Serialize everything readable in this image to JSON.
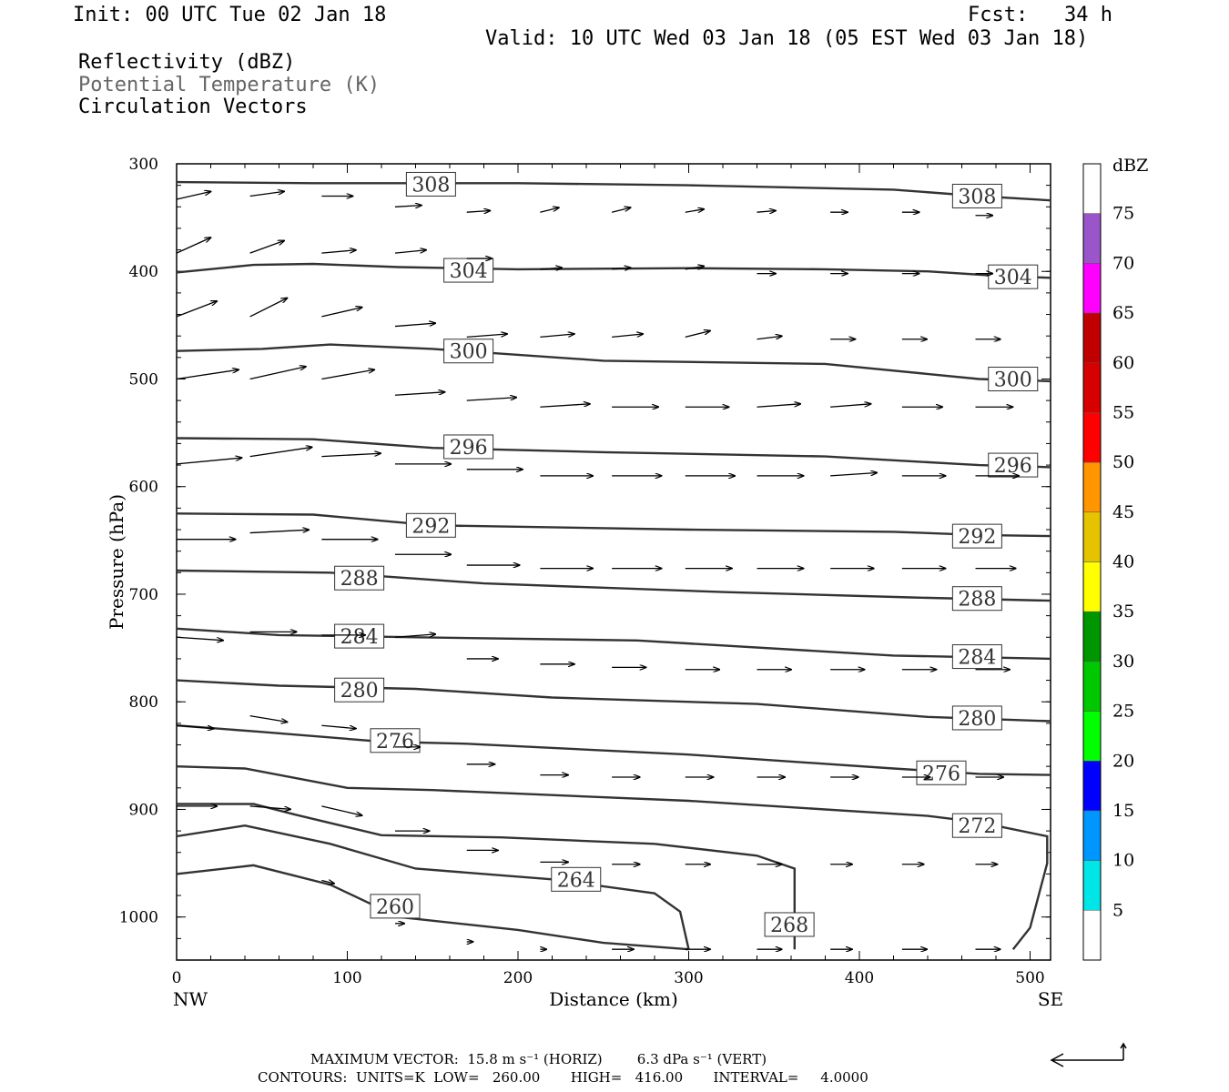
{
  "header": {
    "init": "Init: 00 UTC Tue 02 Jan 18",
    "fcst": "Fcst:   34 h",
    "valid": "Valid: 10 UTC Wed 03 Jan 18 (05 EST Wed 03 Jan 18)",
    "field1": "Reflectivity (dBZ)",
    "field2": "Potential Temperature (K)",
    "field3": "Circulation Vectors"
  },
  "footer": {
    "line1": "MAXIMUM VECTOR:  15.8 m s⁻¹ (HORIZ)        6.3 dPa s⁻¹ (VERT)",
    "line2": "CONTOURS:  UNITS=K  LOW=   260.00       HIGH=   416.00       INTERVAL=     4.0000"
  },
  "colors": {
    "contour": "#333333",
    "vector": "#000000",
    "frame": "#000000"
  },
  "colorbar": {
    "title": "dBZ",
    "ticks": [
      "5",
      "10",
      "15",
      "20",
      "25",
      "30",
      "35",
      "40",
      "45",
      "50",
      "55",
      "60",
      "65",
      "70",
      "75"
    ],
    "colors": [
      "#ffffff",
      "#00e5e5",
      "#0096ff",
      "#0000ff",
      "#00ff00",
      "#00c800",
      "#009600",
      "#ffff00",
      "#e6c300",
      "#ff9600",
      "#ff0000",
      "#d70000",
      "#c00000",
      "#ff00ff",
      "#9955c9",
      "#ffffff"
    ]
  },
  "chart_data": {
    "type": "cross-section",
    "xlabel": "Distance (km)",
    "ylabel": "Pressure (hPa)",
    "xlim": [
      0,
      512
    ],
    "ylim": [
      300,
      1040
    ],
    "xticks": [
      0,
      100,
      200,
      300,
      400,
      500
    ],
    "yticks": [
      300,
      400,
      500,
      600,
      700,
      800,
      900,
      1000
    ],
    "x_end_labels": [
      "NW",
      "SE"
    ],
    "contours": [
      {
        "value": 308,
        "label": "308",
        "points": [
          [
            0,
            317
          ],
          [
            80,
            318
          ],
          [
            200,
            318
          ],
          [
            300,
            320
          ],
          [
            420,
            324
          ],
          [
            470,
            330
          ],
          [
            512,
            334
          ]
        ],
        "labels_at": [
          [
            149,
            319
          ],
          [
            469,
            330
          ]
        ]
      },
      {
        "value": 304,
        "label": "304",
        "points": [
          [
            0,
            401
          ],
          [
            45,
            394
          ],
          [
            80,
            393
          ],
          [
            130,
            396
          ],
          [
            200,
            398
          ],
          [
            300,
            397
          ],
          [
            380,
            398
          ],
          [
            440,
            400
          ],
          [
            480,
            404
          ],
          [
            512,
            406
          ]
        ],
        "labels_at": [
          [
            171,
            399
          ],
          [
            490,
            405
          ]
        ]
      },
      {
        "value": 300,
        "label": "300",
        "points": [
          [
            0,
            474
          ],
          [
            50,
            472
          ],
          [
            90,
            468
          ],
          [
            150,
            472
          ],
          [
            250,
            483
          ],
          [
            380,
            486
          ],
          [
            470,
            500
          ],
          [
            512,
            502
          ]
        ],
        "labels_at": [
          [
            171,
            474
          ],
          [
            490,
            500
          ]
        ]
      },
      {
        "value": 296,
        "label": "296",
        "points": [
          [
            0,
            555
          ],
          [
            80,
            556
          ],
          [
            150,
            564
          ],
          [
            250,
            568
          ],
          [
            380,
            572
          ],
          [
            470,
            580
          ],
          [
            512,
            582
          ]
        ],
        "labels_at": [
          [
            171,
            563
          ],
          [
            490,
            580
          ]
        ]
      },
      {
        "value": 292,
        "label": "292",
        "points": [
          [
            0,
            625
          ],
          [
            80,
            626
          ],
          [
            150,
            636
          ],
          [
            300,
            640
          ],
          [
            420,
            642
          ],
          [
            470,
            645
          ],
          [
            512,
            646
          ]
        ],
        "labels_at": [
          [
            149,
            636
          ],
          [
            469,
            646
          ]
        ]
      },
      {
        "value": 288,
        "label": "288",
        "points": [
          [
            0,
            678
          ],
          [
            90,
            680
          ],
          [
            180,
            690
          ],
          [
            320,
            698
          ],
          [
            430,
            703
          ],
          [
            512,
            706
          ]
        ],
        "labels_at": [
          [
            107,
            685
          ],
          [
            469,
            704
          ]
        ]
      },
      {
        "value": 284,
        "label": "284",
        "points": [
          [
            0,
            732
          ],
          [
            60,
            738
          ],
          [
            140,
            740
          ],
          [
            270,
            743
          ],
          [
            420,
            757
          ],
          [
            512,
            760
          ]
        ],
        "labels_at": [
          [
            107,
            739
          ],
          [
            469,
            758
          ]
        ]
      },
      {
        "value": 280,
        "label": "280",
        "points": [
          [
            0,
            780
          ],
          [
            60,
            785
          ],
          [
            140,
            788
          ],
          [
            220,
            796
          ],
          [
            340,
            802
          ],
          [
            440,
            814
          ],
          [
            512,
            818
          ]
        ],
        "labels_at": [
          [
            107,
            789
          ],
          [
            469,
            815
          ]
        ]
      },
      {
        "value": 276,
        "label": "276",
        "points": [
          [
            0,
            822
          ],
          [
            50,
            828
          ],
          [
            120,
            837
          ],
          [
            170,
            839
          ],
          [
            300,
            849
          ],
          [
            420,
            862
          ],
          [
            470,
            867
          ],
          [
            512,
            868
          ]
        ],
        "labels_at": [
          [
            128,
            836
          ],
          [
            448,
            866
          ]
        ]
      },
      {
        "value": 272,
        "label": "272",
        "points": [
          [
            0,
            860
          ],
          [
            40,
            862
          ],
          [
            100,
            880
          ],
          [
            150,
            882
          ],
          [
            300,
            892
          ],
          [
            440,
            906
          ],
          [
            470,
            912
          ],
          [
            510,
            925
          ],
          [
            510,
            950
          ],
          [
            500,
            1010
          ],
          [
            490,
            1030
          ]
        ],
        "labels_at": [
          [
            469,
            915
          ]
        ]
      },
      {
        "value": 268,
        "label": "268",
        "points": [
          [
            0,
            895
          ],
          [
            45,
            895
          ],
          [
            70,
            905
          ],
          [
            120,
            924
          ],
          [
            190,
            926
          ],
          [
            280,
            932
          ],
          [
            340,
            943
          ],
          [
            362,
            955
          ],
          [
            362,
            1030
          ]
        ],
        "labels_at": [
          [
            359,
            1007
          ]
        ]
      },
      {
        "value": 264,
        "label": "264",
        "points": [
          [
            0,
            925
          ],
          [
            40,
            915
          ],
          [
            90,
            932
          ],
          [
            140,
            955
          ],
          [
            220,
            965
          ],
          [
            280,
            978
          ],
          [
            295,
            995
          ],
          [
            300,
            1030
          ]
        ],
        "labels_at": [
          [
            234,
            965
          ]
        ]
      },
      {
        "value": 260,
        "label": "260",
        "points": [
          [
            0,
            960
          ],
          [
            45,
            952
          ],
          [
            90,
            970
          ],
          [
            130,
            1000
          ],
          [
            200,
            1012
          ],
          [
            250,
            1024
          ],
          [
            300,
            1030
          ]
        ],
        "labels_at": [
          [
            128,
            990
          ]
        ]
      }
    ],
    "vectors": {
      "note": "Circulation vectors as (x km, pressure hPa, u-component, w-component) in arbitrary plot units",
      "arrows": [
        [
          0,
          333,
          22,
          -5
        ],
        [
          43,
          330,
          22,
          -3
        ],
        [
          85,
          330,
          20,
          0
        ],
        [
          128,
          340,
          17,
          -1
        ],
        [
          170,
          345,
          15,
          -1
        ],
        [
          213,
          345,
          12,
          -3
        ],
        [
          255,
          345,
          12,
          -3
        ],
        [
          298,
          345,
          12,
          -2
        ],
        [
          340,
          345,
          12,
          -1
        ],
        [
          383,
          345,
          11,
          0
        ],
        [
          425,
          345,
          11,
          0
        ],
        [
          468,
          348,
          11,
          0
        ],
        [
          0,
          383,
          22,
          -10
        ],
        [
          43,
          383,
          22,
          -8
        ],
        [
          85,
          383,
          22,
          -2
        ],
        [
          128,
          383,
          20,
          -2
        ],
        [
          170,
          388,
          16,
          0
        ],
        [
          213,
          398,
          14,
          -1
        ],
        [
          255,
          398,
          12,
          -1
        ],
        [
          298,
          398,
          12,
          -2
        ],
        [
          340,
          402,
          12,
          0
        ],
        [
          383,
          402,
          11,
          0
        ],
        [
          425,
          402,
          11,
          0
        ],
        [
          468,
          402,
          11,
          0
        ],
        [
          0,
          442,
          26,
          -10
        ],
        [
          43,
          442,
          24,
          -12
        ],
        [
          85,
          442,
          26,
          -6
        ],
        [
          128,
          451,
          26,
          -2
        ],
        [
          170,
          461,
          26,
          -2
        ],
        [
          213,
          461,
          22,
          -2
        ],
        [
          255,
          461,
          20,
          -2
        ],
        [
          298,
          461,
          16,
          -4
        ],
        [
          340,
          463,
          16,
          -2
        ],
        [
          383,
          463,
          16,
          0
        ],
        [
          425,
          463,
          16,
          0
        ],
        [
          468,
          463,
          16,
          0
        ],
        [
          0,
          500,
          40,
          -6
        ],
        [
          43,
          500,
          36,
          -8
        ],
        [
          85,
          500,
          34,
          -6
        ],
        [
          128,
          515,
          32,
          -2
        ],
        [
          170,
          520,
          32,
          -2
        ],
        [
          213,
          526,
          32,
          -2
        ],
        [
          255,
          526,
          30,
          0
        ],
        [
          298,
          526,
          28,
          0
        ],
        [
          340,
          526,
          28,
          -2
        ],
        [
          383,
          526,
          26,
          -2
        ],
        [
          425,
          526,
          26,
          0
        ],
        [
          468,
          526,
          24,
          0
        ],
        [
          0,
          579,
          42,
          -4
        ],
        [
          43,
          572,
          40,
          -6
        ],
        [
          85,
          572,
          38,
          -2
        ],
        [
          128,
          579,
          36,
          0
        ],
        [
          170,
          584,
          36,
          0
        ],
        [
          213,
          590,
          34,
          0
        ],
        [
          255,
          590,
          32,
          0
        ],
        [
          298,
          590,
          32,
          0
        ],
        [
          340,
          590,
          30,
          0
        ],
        [
          383,
          590,
          30,
          -2
        ],
        [
          425,
          590,
          28,
          0
        ],
        [
          468,
          590,
          28,
          0
        ],
        [
          0,
          649,
          38,
          0
        ],
        [
          43,
          643,
          38,
          -2
        ],
        [
          85,
          649,
          36,
          0
        ],
        [
          128,
          663,
          36,
          0
        ],
        [
          170,
          673,
          34,
          0
        ],
        [
          213,
          676,
          34,
          0
        ],
        [
          255,
          676,
          32,
          0
        ],
        [
          298,
          676,
          30,
          0
        ],
        [
          340,
          676,
          30,
          0
        ],
        [
          383,
          676,
          28,
          0
        ],
        [
          425,
          676,
          28,
          0
        ],
        [
          468,
          676,
          26,
          0
        ],
        [
          0,
          740,
          30,
          2
        ],
        [
          43,
          735,
          30,
          0
        ],
        [
          85,
          738,
          28,
          0
        ],
        [
          128,
          740,
          26,
          -2
        ],
        [
          170,
          760,
          20,
          0
        ],
        [
          213,
          765,
          22,
          0
        ],
        [
          255,
          768,
          22,
          0
        ],
        [
          298,
          770,
          22,
          0
        ],
        [
          340,
          770,
          22,
          0
        ],
        [
          383,
          770,
          22,
          0
        ],
        [
          425,
          770,
          22,
          0
        ],
        [
          468,
          770,
          22,
          0
        ],
        [
          0,
          822,
          24,
          2
        ],
        [
          43,
          813,
          24,
          4
        ],
        [
          85,
          822,
          22,
          2
        ],
        [
          128,
          842,
          16,
          0
        ],
        [
          170,
          858,
          18,
          0
        ],
        [
          213,
          868,
          18,
          0
        ],
        [
          255,
          870,
          18,
          0
        ],
        [
          298,
          870,
          18,
          0
        ],
        [
          340,
          870,
          18,
          0
        ],
        [
          383,
          870,
          18,
          0
        ],
        [
          425,
          870,
          18,
          0
        ],
        [
          468,
          870,
          18,
          0
        ],
        [
          0,
          897,
          26,
          0
        ],
        [
          43,
          897,
          26,
          2
        ],
        [
          85,
          897,
          26,
          6
        ],
        [
          128,
          920,
          22,
          0
        ],
        [
          170,
          938,
          20,
          0
        ],
        [
          213,
          949,
          18,
          0
        ],
        [
          255,
          951,
          18,
          0
        ],
        [
          298,
          951,
          16,
          0
        ],
        [
          340,
          951,
          16,
          0
        ],
        [
          383,
          951,
          14,
          0
        ],
        [
          425,
          951,
          14,
          0
        ],
        [
          468,
          951,
          14,
          0
        ],
        [
          85,
          966,
          8,
          2
        ],
        [
          128,
          1006,
          6,
          0
        ],
        [
          170,
          1023,
          4,
          0
        ],
        [
          213,
          1030,
          4,
          0
        ],
        [
          255,
          1030,
          14,
          0
        ],
        [
          298,
          1030,
          16,
          0
        ],
        [
          340,
          1030,
          16,
          0
        ],
        [
          383,
          1030,
          14,
          0
        ],
        [
          425,
          1030,
          16,
          0
        ],
        [
          468,
          1030,
          16,
          0
        ]
      ]
    }
  }
}
